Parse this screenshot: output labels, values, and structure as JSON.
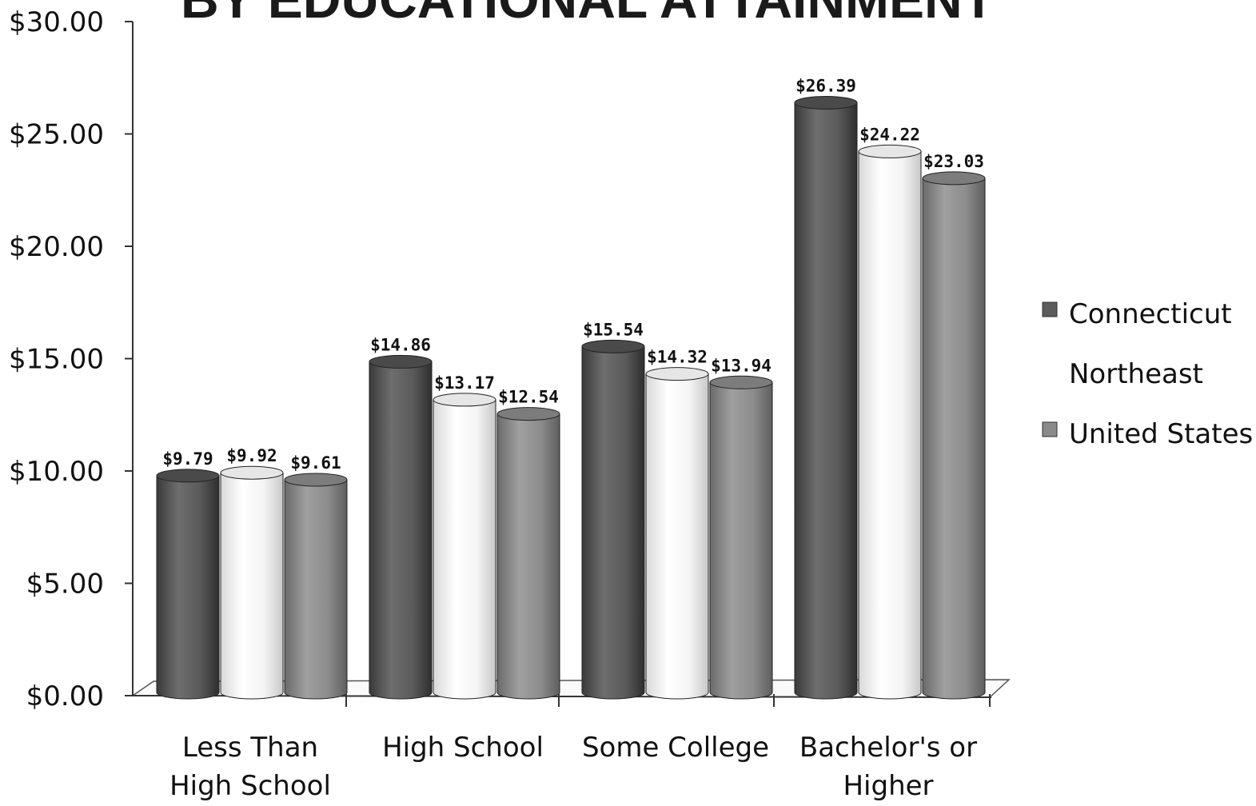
{
  "chart_data": {
    "type": "bar",
    "title": "BY EDUCATIONAL ATTAINMENT",
    "xlabel": "",
    "ylabel": "",
    "ylim": [
      0,
      30
    ],
    "yticks": [
      "$0.00",
      "$5.00",
      "$10.00",
      "$15.00",
      "$20.00",
      "$25.00",
      "$30.00"
    ],
    "ytick_values": [
      0,
      5,
      10,
      15,
      20,
      25,
      30
    ],
    "categories": [
      [
        "Less Than",
        "High School"
      ],
      [
        "High School"
      ],
      [
        "Some College"
      ],
      [
        "Bachelor's or",
        "Higher"
      ]
    ],
    "series": [
      {
        "name": "Connecticut",
        "color": "#5c5c5c",
        "values": [
          9.79,
          14.86,
          15.54,
          26.39
        ],
        "labels": [
          "$9.79",
          "$14.86",
          "$15.54",
          "$26.39"
        ]
      },
      {
        "name": "Northeast",
        "color": "#f2f2f2",
        "values": [
          9.92,
          13.17,
          14.32,
          24.22
        ],
        "labels": [
          "$9.92",
          "$13.17",
          "$14.32",
          "$24.22"
        ]
      },
      {
        "name": "United States",
        "color": "#8a8a8a",
        "values": [
          9.61,
          12.54,
          13.94,
          23.03
        ],
        "labels": [
          "$9.61",
          "$12.54",
          "$13.94",
          "$23.03"
        ]
      }
    ],
    "grid": false,
    "legend": "right",
    "style": "3d-cylinder"
  }
}
